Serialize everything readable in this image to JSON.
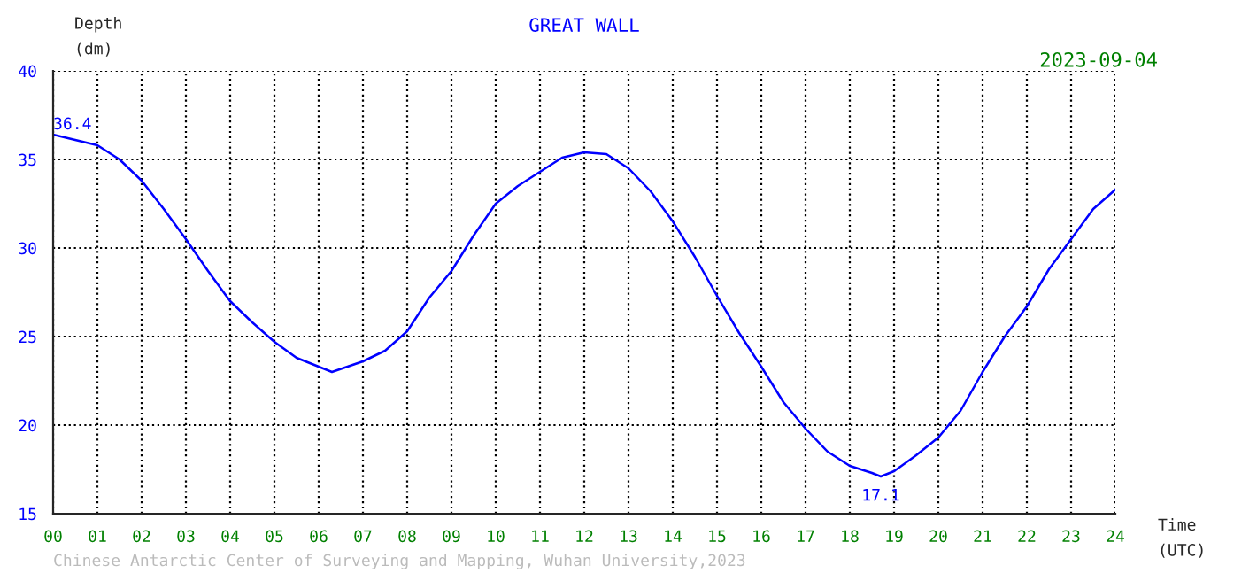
{
  "chart_data": {
    "type": "line",
    "title": "GREAT WALL",
    "subtitle": "2023-09-04",
    "xlabel": "Time\n(UTC)",
    "ylabel": "Depth\n(dm)",
    "annotations": [
      {
        "text": "36.4",
        "x": 0,
        "y": 36.4
      },
      {
        "text": "17.1",
        "x": 18.7,
        "y": 17.1
      },
      "Chinese Antarctic Center of Surveying and Mapping, Wuhan University,2023"
    ],
    "series": [
      {
        "color": "#0000ff",
        "x": [
          0,
          0.5,
          1,
          1.5,
          2,
          2.5,
          3,
          3.5,
          4,
          4.5,
          5,
          5.5,
          6,
          6.3,
          7,
          7.5,
          8,
          8.5,
          9,
          9.5,
          10,
          10.5,
          11,
          11.5,
          12,
          12.5,
          13,
          13.5,
          14,
          14.5,
          15,
          15.5,
          16,
          16.5,
          17,
          17.5,
          18,
          18.5,
          18.7,
          19,
          19.5,
          20,
          20.5,
          21,
          21.5,
          22,
          22.5,
          23,
          23.5,
          24
        ],
        "values": [
          36.4,
          36.1,
          35.8,
          35.0,
          33.8,
          32.2,
          30.5,
          28.7,
          27.0,
          25.8,
          24.7,
          23.8,
          23.3,
          23.0,
          23.6,
          24.2,
          25.3,
          27.2,
          28.7,
          30.7,
          32.5,
          33.5,
          34.3,
          35.1,
          35.4,
          35.3,
          34.5,
          33.2,
          31.5,
          29.5,
          27.3,
          25.2,
          23.3,
          21.3,
          19.8,
          18.5,
          17.7,
          17.3,
          17.1,
          17.4,
          18.3,
          19.3,
          20.8,
          23.0,
          25.0,
          26.7,
          28.8,
          30.5,
          32.2,
          33.3
        ]
      }
    ],
    "xlim": [
      0,
      24
    ],
    "ylim": [
      15,
      40
    ],
    "xticks": [
      {
        "value": 0,
        "label": "00"
      },
      {
        "value": 1,
        "label": "01"
      },
      {
        "value": 2,
        "label": "02"
      },
      {
        "value": 3,
        "label": "03"
      },
      {
        "value": 4,
        "label": "04"
      },
      {
        "value": 5,
        "label": "05"
      },
      {
        "value": 6,
        "label": "06"
      },
      {
        "value": 7,
        "label": "07"
      },
      {
        "value": 8,
        "label": "08"
      },
      {
        "value": 9,
        "label": "09"
      },
      {
        "value": 10,
        "label": "10"
      },
      {
        "value": 11,
        "label": "11"
      },
      {
        "value": 12,
        "label": "12"
      },
      {
        "value": 13,
        "label": "13"
      },
      {
        "value": 14,
        "label": "14"
      },
      {
        "value": 15,
        "label": "15"
      },
      {
        "value": 16,
        "label": "16"
      },
      {
        "value": 17,
        "label": "17"
      },
      {
        "value": 18,
        "label": "18"
      },
      {
        "value": 19,
        "label": "19"
      },
      {
        "value": 20,
        "label": "20"
      },
      {
        "value": 21,
        "label": "21"
      },
      {
        "value": 22,
        "label": "22"
      },
      {
        "value": 23,
        "label": "23"
      },
      {
        "value": 24,
        "label": "24"
      }
    ],
    "yticks": [
      15,
      20,
      25,
      30,
      35,
      40
    ],
    "grid": true,
    "line_style": "solid"
  }
}
